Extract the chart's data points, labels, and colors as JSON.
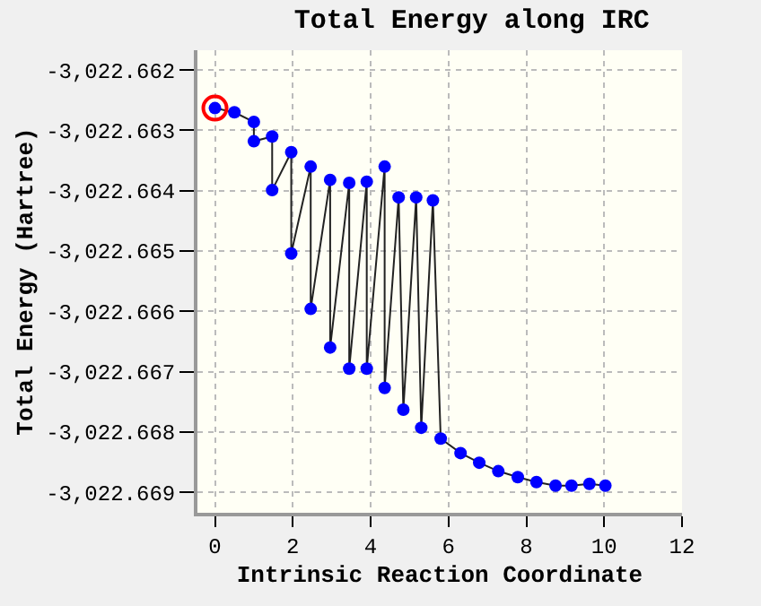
{
  "chart_data": {
    "type": "line",
    "title": "Total Energy along IRC",
    "xlabel": "Intrinsic Reaction Coordinate",
    "ylabel": "Total Energy (Hartree)",
    "xlim": [
      -0.45,
      12
    ],
    "xticks": [
      0,
      2,
      4,
      6,
      8,
      10,
      12
    ],
    "ylim": [
      -3022.66934,
      -3022.66167
    ],
    "yticks": [
      {
        "value": -3022.662,
        "label": "-3,022.662"
      },
      {
        "value": -3022.663,
        "label": "-3,022.663"
      },
      {
        "value": -3022.664,
        "label": "-3,022.664"
      },
      {
        "value": -3022.665,
        "label": "-3,022.665"
      },
      {
        "value": -3022.666,
        "label": "-3,022.666"
      },
      {
        "value": -3022.667,
        "label": "-3,022.667"
      },
      {
        "value": -3022.668,
        "label": "-3,022.668"
      },
      {
        "value": -3022.669,
        "label": "-3,022.669"
      }
    ],
    "grid": true,
    "marker": "circle",
    "line_style": "solid",
    "series": [
      {
        "color": "#0000ff",
        "x": [
          0,
          0.5,
          1.0,
          1.0,
          1.47,
          1.47,
          1.96,
          1.96,
          2.46,
          2.46,
          2.96,
          2.96,
          3.45,
          3.45,
          3.9,
          3.9,
          4.36,
          4.36,
          4.72,
          4.84,
          5.17,
          5.3,
          5.6,
          5.8,
          6.31,
          6.79,
          7.28,
          7.78,
          8.26,
          8.75,
          9.16,
          9.62,
          10.03
        ],
        "values": [
          -3022.66263,
          -3022.6627,
          -3022.66286,
          -3022.66318,
          -3022.6631,
          -3022.66399,
          -3022.66336,
          -3022.66504,
          -3022.6636,
          -3022.66596,
          -3022.66382,
          -3022.6666,
          -3022.66387,
          -3022.66695,
          -3022.66385,
          -3022.66695,
          -3022.6636,
          -3022.66727,
          -3022.66411,
          -3022.66763,
          -3022.66411,
          -3022.66793,
          -3022.66416,
          -3022.66811,
          -3022.66835,
          -3022.66851,
          -3022.66865,
          -3022.66875,
          -3022.66883,
          -3022.66889,
          -3022.66889,
          -3022.66886,
          -3022.66889
        ]
      },
      {
        "type": "scatter",
        "color": "#ff0000",
        "x": [
          0
        ],
        "values": [
          -3022.66263
        ]
      }
    ]
  }
}
